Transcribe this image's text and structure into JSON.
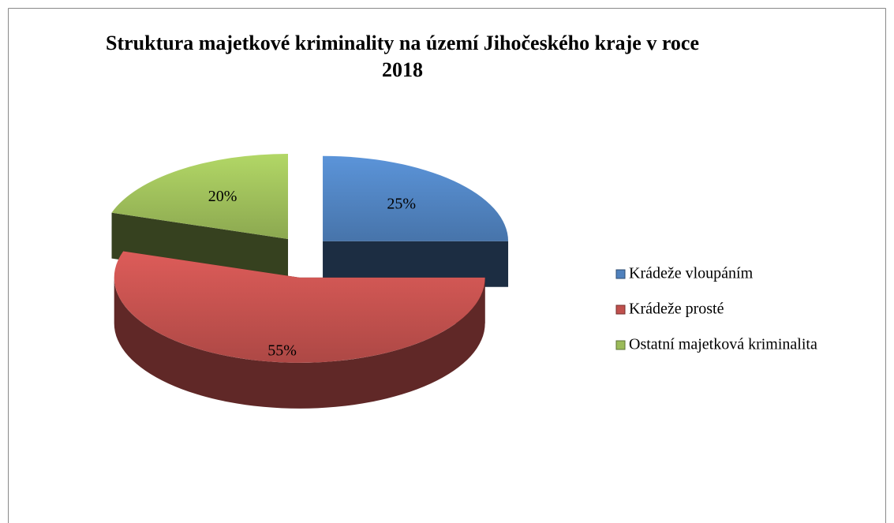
{
  "chart_data": {
    "type": "pie",
    "title": "Struktura majetkové kriminality na území Jihočeského kraje v roce 2018",
    "categories": [
      "Krádeže vloupáním",
      "Krádeže prosté",
      "Ostatní majetková kriminalita"
    ],
    "values": [
      25,
      55,
      20
    ],
    "value_labels": [
      "25%",
      "55%",
      "20%"
    ],
    "colors": [
      "#4f81bd",
      "#c0504d",
      "#9bbb59"
    ],
    "legend": "right"
  }
}
